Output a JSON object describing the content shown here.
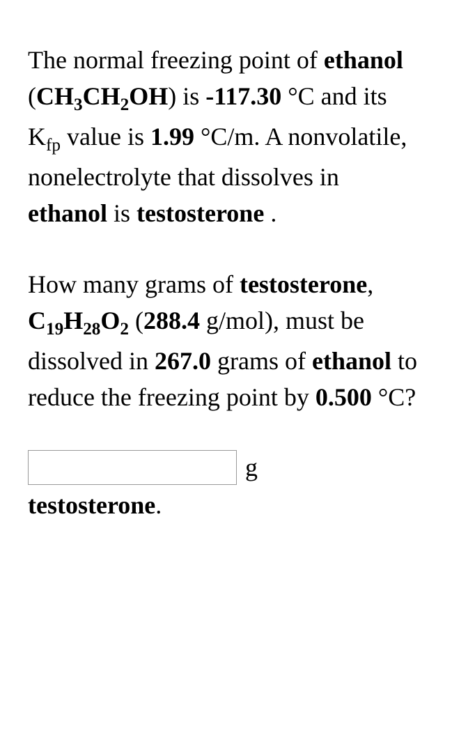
{
  "problem": {
    "para1_parts": {
      "t1": "The normal freezing point of ",
      "solvent": "ethanol",
      "t2": " (",
      "formula_ch": "CH",
      "sub3": "3",
      "formula_ch2": "CH",
      "sub2": "2",
      "formula_oh": "OH",
      "t3": ") is ",
      "fp": "-117.30",
      "t4": " °C and its K",
      "kfp_sub": "fp",
      "t5": " value is ",
      "kfp_value": "1.99",
      "t6": " °C/m. A nonvolatile, nonelectrolyte that dissolves in ",
      "solvent2": "ethanol",
      "t7": " is ",
      "solute": "testosterone",
      "t8": " ."
    },
    "para2_parts": {
      "t1": "How many grams of ",
      "solute": "testosterone",
      "t2": ", ",
      "formula_c": "C",
      "sub19": "19",
      "formula_h": "H",
      "sub28": "28",
      "formula_o": "O",
      "sub2b": "2",
      "t3": " (",
      "molar_mass": "288.4",
      "t4": " g/mol), must be dissolved in ",
      "solvent_mass": "267.0",
      "t5": " grams of ",
      "solvent": "ethanol",
      "t6": " to reduce the freezing point by ",
      "delta_t": "0.500",
      "t7": " °C?"
    },
    "answer": {
      "value": "",
      "unit": "g",
      "label": "testosterone",
      "period": "."
    }
  }
}
